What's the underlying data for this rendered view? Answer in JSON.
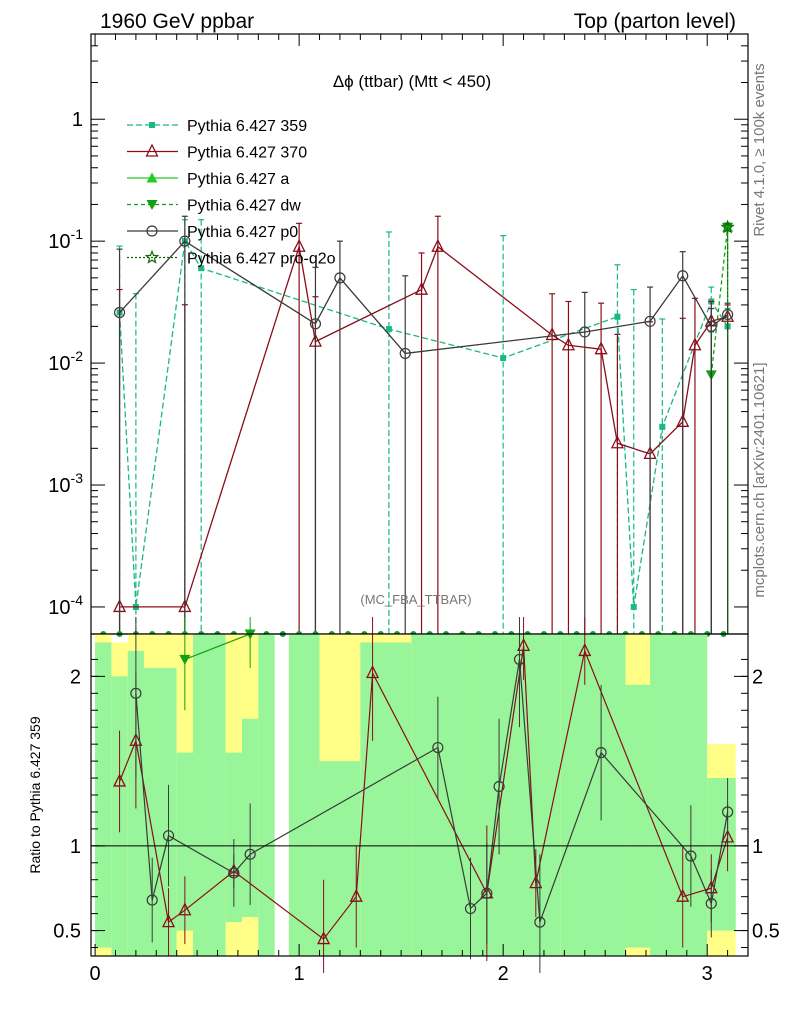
{
  "header": {
    "left": "1960 GeV ppbar",
    "right": "Top (parton level)"
  },
  "side_labels": {
    "rivet": "Rivet 4.1.0, ≥ 100k events",
    "mcplots": "mcplots.cern.ch [arXiv:2401.10621]"
  },
  "chart_data": [
    {
      "type": "line",
      "title": "Δϕ (ttbar) (Mtt < 450)",
      "watermark": "(MC_FBA_TTBAR)",
      "yscale": "log",
      "ylim": [
        6e-05,
        5
      ],
      "xlim": [
        -0.02,
        3.2
      ],
      "y_ticks": [
        {
          "value": 1,
          "label": "1"
        },
        {
          "value": 0.1,
          "label": "10^-1"
        },
        {
          "value": 0.01,
          "label": "10^-2"
        },
        {
          "value": 0.001,
          "label": "10^-3"
        },
        {
          "value": 0.0001,
          "label": "10^-4"
        }
      ],
      "legend_position": "top-left",
      "series": [
        {
          "name": "Pythia 6.427 359",
          "color": "#1ab885",
          "dash": "6,3",
          "marker": "square",
          "points": [
            [
              0.12,
              0.026,
              0.065
            ],
            [
              0.2,
              0.0001,
              0.037
            ],
            [
              0.44,
              0.1,
              0.05
            ],
            [
              0.52,
              0.06,
              0.09
            ],
            [
              1.44,
              0.019,
              0.1
            ],
            [
              2.0,
              0.011,
              0.1
            ],
            [
              2.56,
              0.024,
              0.04
            ],
            [
              2.64,
              0.0001,
              0.04
            ],
            [
              2.78,
              0.003,
              0.02
            ],
            [
              3.02,
              0.032,
              0.01
            ],
            [
              3.1,
              0.02,
              0.008
            ]
          ]
        },
        {
          "name": "Pythia 6.427 370",
          "color": "#8b0d1a",
          "dash": "",
          "marker": "triangle-open",
          "points": [
            [
              0.12,
              0.0001,
              0.04
            ],
            [
              0.44,
              0.0001,
              0.03
            ],
            [
              1.0,
              0.09,
              0.05
            ],
            [
              1.08,
              0.015,
              0.02
            ],
            [
              1.6,
              0.04,
              0.04
            ],
            [
              1.68,
              0.09,
              0.07
            ],
            [
              2.24,
              0.017,
              0.02
            ],
            [
              2.32,
              0.014,
              0.018
            ],
            [
              2.48,
              0.013,
              0.018
            ],
            [
              2.56,
              0.0022,
              0.015
            ],
            [
              2.72,
              0.0018,
              0.02
            ],
            [
              2.88,
              0.0033,
              0.02
            ],
            [
              2.94,
              0.014,
              0.02
            ],
            [
              3.02,
              0.022,
              0.01
            ],
            [
              3.1,
              0.024,
              0.006
            ]
          ]
        },
        {
          "name": "Pythia 6.427 a",
          "color": "#22cc22",
          "dash": "",
          "marker": "triangle",
          "points": [
            [
              3.1,
              0.13,
              0.01
            ]
          ]
        },
        {
          "name": "Pythia 6.427 dw",
          "color": "#11a011",
          "dash": "4,3",
          "marker": "triangle-down",
          "points": [
            [
              3.02,
              0.008,
              0.01
            ],
            [
              3.1,
              0.13,
              0.01
            ]
          ]
        },
        {
          "name": "Pythia 6.427 p0",
          "color": "#3a3a3a",
          "dash": "",
          "marker": "circle-open",
          "points": [
            [
              0.12,
              0.026,
              0.06
            ],
            [
              0.44,
              0.1,
              0.06
            ],
            [
              1.08,
              0.021,
              0.04
            ],
            [
              1.2,
              0.05,
              0.05
            ],
            [
              1.52,
              0.012,
              0.04
            ],
            [
              2.4,
              0.018,
              0.02
            ],
            [
              2.72,
              0.022,
              0.02
            ],
            [
              2.88,
              0.052,
              0.03
            ],
            [
              3.02,
              0.02,
              0.008
            ],
            [
              3.1,
              0.025,
              0.006
            ]
          ]
        },
        {
          "name": "Pythia 6.427 pro-q2o",
          "color": "#0b6a0b",
          "dash": "2,2",
          "marker": "star",
          "points": [
            [
              3.1,
              0.13,
              0.01
            ]
          ]
        }
      ]
    },
    {
      "type": "line",
      "ylabel": "Ratio to Pythia 6.427 359",
      "ylim": [
        0.35,
        2.25
      ],
      "xlim": [
        -0.02,
        3.2
      ],
      "x_ticks": [
        0,
        1,
        2,
        3
      ],
      "y_ticks": [
        0.5,
        1,
        2
      ],
      "reference": 1,
      "band_bins": [
        {
          "x0": 0.0,
          "x1": 0.08,
          "g": [
            0.4,
            2.2
          ],
          "y": [
            0.35,
            2.25
          ]
        },
        {
          "x0": 0.08,
          "x1": 0.16,
          "g": [
            0.35,
            2.0
          ],
          "y": [
            0.35,
            2.2
          ]
        },
        {
          "x0": 0.16,
          "x1": 0.24,
          "g": [
            0.35,
            2.15
          ],
          "y": [
            0.35,
            2.25
          ]
        },
        {
          "x0": 0.24,
          "x1": 0.4,
          "g": [
            0.35,
            2.05
          ],
          "y": [
            0.35,
            2.25
          ]
        },
        {
          "x0": 0.4,
          "x1": 0.48,
          "g": [
            0.5,
            1.55
          ],
          "y": [
            0.35,
            2.25
          ]
        },
        {
          "x0": 0.48,
          "x1": 0.64,
          "g": [
            0.35,
            2.25
          ],
          "y": [
            0.35,
            2.25
          ]
        },
        {
          "x0": 0.64,
          "x1": 0.72,
          "g": [
            0.55,
            1.55
          ],
          "y": [
            0.35,
            2.25
          ]
        },
        {
          "x0": 0.72,
          "x1": 0.8,
          "g": [
            0.58,
            1.75
          ],
          "y": [
            0.35,
            2.25
          ]
        },
        {
          "x0": 0.8,
          "x1": 0.88,
          "g": [
            0.35,
            2.25
          ],
          "y": [
            0.35,
            2.25
          ]
        },
        {
          "x0": 0.95,
          "x1": 1.1,
          "g": [
            0.35,
            2.25
          ],
          "y": [
            0.35,
            2.25
          ]
        },
        {
          "x0": 1.1,
          "x1": 1.3,
          "g": [
            0.35,
            1.5
          ],
          "y": [
            0.35,
            2.25
          ]
        },
        {
          "x0": 1.3,
          "x1": 1.55,
          "g": [
            0.35,
            2.2
          ],
          "y": [
            0.35,
            2.25
          ]
        },
        {
          "x0": 1.55,
          "x1": 1.85,
          "g": [
            0.35,
            2.25
          ],
          "y": [
            0.35,
            2.25
          ]
        },
        {
          "x0": 1.85,
          "x1": 2.28,
          "g": [
            0.35,
            2.25
          ],
          "y": [
            0.35,
            2.25
          ]
        },
        {
          "x0": 2.28,
          "x1": 2.6,
          "g": [
            0.35,
            2.25
          ],
          "y": [
            0.35,
            2.25
          ]
        },
        {
          "x0": 2.6,
          "x1": 2.72,
          "g": [
            0.4,
            1.95
          ],
          "y": [
            0.35,
            2.25
          ]
        },
        {
          "x0": 2.72,
          "x1": 3.0,
          "g": [
            0.35,
            2.25
          ],
          "y": [
            0.35,
            2.25
          ]
        },
        {
          "x0": 3.0,
          "x1": 3.14,
          "g": [
            0.5,
            1.4
          ],
          "y": [
            0.35,
            1.6
          ]
        }
      ],
      "band_gap_color": "#ffffff",
      "series": [
        {
          "name": "Pythia 6.427 370",
          "color": "#8b0d1a",
          "marker": "triangle-open",
          "points": [
            [
              0.12,
              1.38,
              0.3
            ],
            [
              0.2,
              1.62,
              0.4
            ],
            [
              0.36,
              0.55,
              0.2
            ],
            [
              0.44,
              0.62,
              0.2
            ],
            [
              0.68,
              0.85,
              0.1
            ],
            [
              1.12,
              0.45,
              0.35
            ],
            [
              1.28,
              0.7,
              0.3
            ],
            [
              1.36,
              2.02,
              0.4
            ],
            [
              1.92,
              0.72,
              0.4
            ],
            [
              2.1,
              2.18,
              0.2
            ],
            [
              2.16,
              0.78,
              0.2
            ],
            [
              2.4,
              2.15,
              0.2
            ],
            [
              2.88,
              0.7,
              0.3
            ],
            [
              3.02,
              0.75,
              0.2
            ],
            [
              3.1,
              1.05,
              0.2
            ]
          ]
        },
        {
          "name": "Pythia 6.427 p0",
          "color": "#3a3a3a",
          "marker": "circle-open",
          "points": [
            [
              0.2,
              1.9,
              0.5
            ],
            [
              0.28,
              0.68,
              0.25
            ],
            [
              0.36,
              1.06,
              0.3
            ],
            [
              0.68,
              0.84,
              0.2
            ],
            [
              0.76,
              0.95,
              0.3
            ],
            [
              1.68,
              1.58,
              0.3
            ],
            [
              1.84,
              0.63,
              0.3
            ],
            [
              1.92,
              0.72,
              0.3
            ],
            [
              1.98,
              1.35,
              0.4
            ],
            [
              2.08,
              2.1,
              0.4
            ],
            [
              2.18,
              0.55,
              0.4
            ],
            [
              2.48,
              1.55,
              0.4
            ],
            [
              2.92,
              0.94,
              0.3
            ],
            [
              3.02,
              0.66,
              0.2
            ],
            [
              3.1,
              1.2,
              0.2
            ]
          ]
        },
        {
          "name": "Pythia 6.427 dw",
          "color": "#11a011",
          "marker": "triangle-down",
          "points": [
            [
              0.44,
              2.1,
              0.3
            ],
            [
              0.76,
              2.25,
              0.2
            ]
          ]
        }
      ]
    }
  ]
}
